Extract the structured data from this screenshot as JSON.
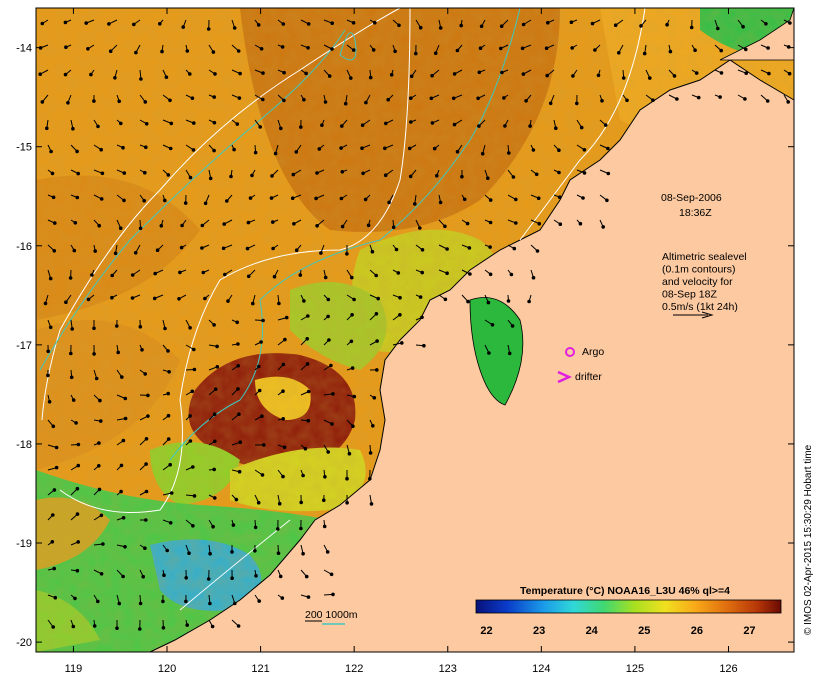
{
  "map": {
    "lon_ticks": [
      "119",
      "120",
      "121",
      "122",
      "123",
      "124",
      "125",
      "126"
    ],
    "lat_ticks": [
      "-14",
      "-15",
      "-16",
      "-17",
      "-18",
      "-19",
      "-20"
    ],
    "lon_range": [
      118.6,
      126.7
    ],
    "lat_range": [
      -13.6,
      -20.1
    ]
  },
  "annotation": {
    "date": "08-Sep-2006",
    "time": "18:36Z",
    "altimetry_lines": [
      "Altimetric sealevel",
      "(0.1m contours)",
      "and velocity for",
      "08-Sep 18Z",
      "0.5m/s (1kt 24h)"
    ]
  },
  "legend": {
    "argo_label": "Argo",
    "drifter_label": "drifter",
    "depth_label": "200  1000m",
    "colors": {
      "argo": "#e020e0",
      "drifter": "#e020e0",
      "isobath_200": "#40c8c0",
      "isobath_1000": "#ffffff",
      "land": "#fcc9a0"
    }
  },
  "colorbar": {
    "title": "Temperature (°C) NOAA16_L3U 46% ql>=4",
    "ticks": [
      "22",
      "23",
      "24",
      "25",
      "26",
      "27"
    ],
    "range": [
      21.8,
      27.6
    ]
  },
  "credit": "© IMOS 02-Apr-2015 15:30:29 Hobart time"
}
